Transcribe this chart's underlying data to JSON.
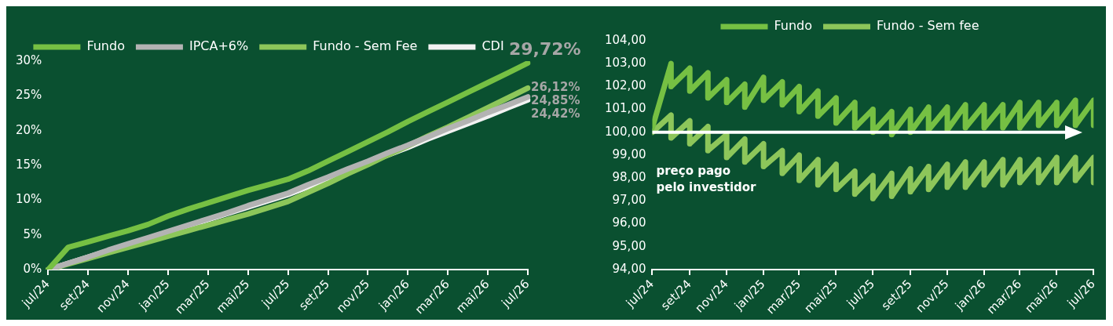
{
  "chart_data": [
    {
      "type": "line",
      "categories": [
        "jul/24",
        null,
        "set/24",
        null,
        "nov/24",
        null,
        "jan/25",
        null,
        "mar/25",
        null,
        "mai/25",
        null,
        "jul/25",
        null,
        "set/25",
        null,
        "nov/25",
        null,
        "jan/26",
        null,
        "mar/26",
        null,
        "mai/26",
        null,
        "jul/26"
      ],
      "series": [
        {
          "name": "Fundo",
          "color": "#76c043",
          "values": [
            0,
            3.2,
            4.0,
            4.8,
            5.6,
            6.5,
            7.7,
            8.7,
            9.6,
            10.5,
            11.4,
            12.2,
            13.0,
            14.2,
            15.6,
            17.0,
            18.4,
            19.8,
            21.3,
            22.7,
            24.1,
            25.5,
            26.9,
            28.3,
            29.72
          ],
          "value_labels": [
            null,
            null,
            null,
            null,
            null,
            null,
            null,
            null,
            null,
            null,
            null,
            null,
            null,
            null,
            null,
            null,
            null,
            null,
            null,
            null,
            null,
            null,
            null,
            null,
            "29,72%"
          ]
        },
        {
          "name": "IPCA+6%",
          "color": "#b3b3b3",
          "values": [
            0,
            0.9,
            1.8,
            2.8,
            3.7,
            4.6,
            5.5,
            6.4,
            7.3,
            8.2,
            9.2,
            10.1,
            11.0,
            12.2,
            13.3,
            14.5,
            15.6,
            16.8,
            17.9,
            19.1,
            20.3,
            21.4,
            22.6,
            23.7,
            24.85
          ],
          "value_labels": [
            null,
            null,
            null,
            null,
            null,
            null,
            null,
            null,
            null,
            null,
            null,
            null,
            null,
            null,
            null,
            null,
            null,
            null,
            null,
            null,
            null,
            null,
            null,
            null,
            "24,85%"
          ]
        },
        {
          "name": "Fundo - Sem Fee",
          "color": "#8dc65a",
          "values": [
            0,
            0.8,
            1.6,
            2.4,
            3.2,
            4.0,
            4.8,
            5.6,
            6.4,
            7.2,
            8.0,
            8.9,
            9.8,
            11.1,
            12.4,
            13.8,
            15.1,
            16.5,
            17.8,
            19.2,
            20.5,
            21.9,
            23.3,
            24.7,
            26.12
          ],
          "value_labels": [
            null,
            null,
            null,
            null,
            null,
            null,
            null,
            null,
            null,
            null,
            null,
            null,
            null,
            null,
            null,
            null,
            null,
            null,
            null,
            null,
            null,
            null,
            null,
            null,
            "26,12%"
          ]
        },
        {
          "name": "CDI",
          "color": "#f2f2f2",
          "values": [
            0,
            0.9,
            1.8,
            2.7,
            3.6,
            4.5,
            5.4,
            6.3,
            7.2,
            8.1,
            9.0,
            9.9,
            10.8,
            11.9,
            13.1,
            14.2,
            15.4,
            16.5,
            17.6,
            18.8,
            19.9,
            21.0,
            22.1,
            23.3,
            24.42
          ],
          "value_labels": [
            null,
            null,
            null,
            null,
            null,
            null,
            null,
            null,
            null,
            null,
            null,
            null,
            null,
            null,
            null,
            null,
            null,
            null,
            null,
            null,
            null,
            null,
            null,
            null,
            "24,42%"
          ]
        }
      ],
      "ylim": [
        0,
        30
      ],
      "yticks": [
        {
          "value": 0,
          "label": "0%"
        },
        {
          "value": 5,
          "label": "5%"
        },
        {
          "value": 10,
          "label": "10%"
        },
        {
          "value": 15,
          "label": "15%"
        },
        {
          "value": 20,
          "label": "20%"
        },
        {
          "value": 25,
          "label": "25%"
        },
        {
          "value": 30,
          "label": "30%"
        }
      ],
      "legend": "top",
      "marker": "none"
    },
    {
      "type": "line",
      "x": [
        "2024-07-01",
        "2024-08-01",
        "2024-08-01",
        "2024-09-01",
        "2024-09-01",
        "2024-10-01",
        "2024-10-01",
        "2024-11-01",
        "2024-11-01",
        "2024-12-01",
        "2024-12-01",
        "2025-01-01",
        "2025-01-01",
        "2025-02-01",
        "2025-02-01",
        "2025-03-01",
        "2025-03-01",
        "2025-04-01",
        "2025-04-01",
        "2025-05-01",
        "2025-05-01",
        "2025-06-01",
        "2025-06-01",
        "2025-07-01",
        "2025-07-01",
        "2025-08-01",
        "2025-08-01",
        "2025-09-01",
        "2025-09-01",
        "2025-10-01",
        "2025-10-01",
        "2025-11-01",
        "2025-11-01",
        "2025-12-01",
        "2025-12-01",
        "2026-01-01",
        "2026-01-01",
        "2026-02-01",
        "2026-02-01",
        "2026-03-01",
        "2026-03-01",
        "2026-04-01",
        "2026-04-01",
        "2026-05-01",
        "2026-05-01",
        "2026-06-01",
        "2026-06-01",
        "2026-07-01",
        "2026-07-01"
      ],
      "series": [
        {
          "name": "Fundo",
          "color": "#76c043",
          "values": [
            100.2,
            103.0,
            102.0,
            102.8,
            101.8,
            102.6,
            101.5,
            102.3,
            101.3,
            102.1,
            101.1,
            102.4,
            101.4,
            102.2,
            101.2,
            102.0,
            100.9,
            101.8,
            100.7,
            101.5,
            100.4,
            101.3,
            100.2,
            101.0,
            100.0,
            100.9,
            99.9,
            101.0,
            100.0,
            101.1,
            100.1,
            101.1,
            100.1,
            101.2,
            100.2,
            101.2,
            100.2,
            101.2,
            100.2,
            101.3,
            100.2,
            101.3,
            100.3,
            101.3,
            100.3,
            101.4,
            100.3,
            101.4,
            100.3
          ]
        },
        {
          "name": "Fundo - Sem fee",
          "color": "#8dc65a",
          "values": [
            100.0,
            100.75,
            99.75,
            100.5,
            99.5,
            100.25,
            99.2,
            99.9,
            98.9,
            99.7,
            98.7,
            99.5,
            98.5,
            99.2,
            98.2,
            99.0,
            97.9,
            98.8,
            97.7,
            98.6,
            97.5,
            98.3,
            97.3,
            98.1,
            97.1,
            98.2,
            97.2,
            98.4,
            97.4,
            98.5,
            97.5,
            98.6,
            97.6,
            98.7,
            97.6,
            98.7,
            97.7,
            98.8,
            97.7,
            98.8,
            97.8,
            98.8,
            97.8,
            98.9,
            97.8,
            98.9,
            97.9,
            98.9,
            97.8
          ]
        }
      ],
      "xlim": [
        "2024-07-01",
        "2026-07-01"
      ],
      "xticks": [
        {
          "value": "2024-07-01",
          "label": "jul/24"
        },
        {
          "value": "2024-09-01",
          "label": "set/24"
        },
        {
          "value": "2024-11-01",
          "label": "nov/24"
        },
        {
          "value": "2025-01-01",
          "label": "jan/25"
        },
        {
          "value": "2025-03-01",
          "label": "mar/25"
        },
        {
          "value": "2025-05-01",
          "label": "mai/25"
        },
        {
          "value": "2025-07-01",
          "label": "jul/25"
        },
        {
          "value": "2025-09-01",
          "label": "set/25"
        },
        {
          "value": "2025-11-01",
          "label": "nov/25"
        },
        {
          "value": "2026-01-01",
          "label": "jan/26"
        },
        {
          "value": "2026-03-01",
          "label": "mar/26"
        },
        {
          "value": "2026-05-01",
          "label": "mai/26"
        },
        {
          "value": "2026-07-01",
          "label": "jul/26"
        }
      ],
      "ylim": [
        94,
        104
      ],
      "yticks": [
        {
          "value": 94,
          "label": "94,00"
        },
        {
          "value": 95,
          "label": "95,00"
        },
        {
          "value": 96,
          "label": "96,00"
        },
        {
          "value": 97,
          "label": "97,00"
        },
        {
          "value": 98,
          "label": "98,00"
        },
        {
          "value": 99,
          "label": "99,00"
        },
        {
          "value": 100,
          "label": "100,00"
        },
        {
          "value": 101,
          "label": "101,00"
        },
        {
          "value": 102,
          "label": "102,00"
        },
        {
          "value": 103,
          "label": "103,00"
        },
        {
          "value": 104,
          "label": "104,00"
        }
      ],
      "ref_lines": [
        {
          "axis": "y",
          "value": 100,
          "label": "preço pago pelo investidor",
          "color": "#ffffff"
        }
      ],
      "legend": "top",
      "marker": "none"
    }
  ]
}
